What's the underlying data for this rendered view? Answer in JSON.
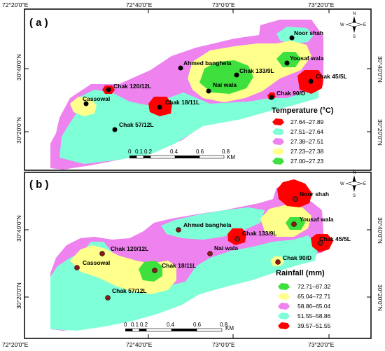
{
  "map": {
    "lon_ticks_top": [
      "72°20'0\"E",
      "72°40'0\"E",
      "73°0'0\"E",
      "73°20'0\"E"
    ],
    "lon_ticks_bottom": [
      "72°20'0\"E",
      "72°40'0\"E",
      "73°0'0\"E",
      "73°20'0\"E"
    ],
    "lat_ticks": [
      "30°40'0\"N",
      "30°20'0\"N"
    ],
    "compass": {
      "n": "N",
      "s": "S",
      "e": "E",
      "w": "W"
    },
    "scale_labels": [
      "0",
      "0.1",
      "0.2",
      "0.4",
      "0.6",
      "0.8"
    ],
    "scale_unit": "KM",
    "colors": {
      "red": "#ff0000",
      "cyan": "#7fffd8",
      "pink": "#ee82ee",
      "yellow": "#ffff8c",
      "green": "#3ee03e",
      "dot_black": "#000000",
      "dot_brown": "#8b1a1a"
    },
    "panels": [
      {
        "id": "a",
        "title": "( a )",
        "legend_title": "Temperature (°C)",
        "legend": [
          {
            "range": "27.64–27.89",
            "color": "#ff0000"
          },
          {
            "range": "27.51–27.64",
            "color": "#7fffd8"
          },
          {
            "range": "27.38–27.51",
            "color": "#ee82ee"
          },
          {
            "range": "27.23–27.38",
            "color": "#ffff8c"
          },
          {
            "range": "27.00–27.23",
            "color": "#3ee03e"
          }
        ],
        "points": [
          {
            "name": "Noor shah"
          },
          {
            "name": "Yousaf wala"
          },
          {
            "name": "Ahmed banghela"
          },
          {
            "name": "Chak 133/9L"
          },
          {
            "name": "Chak 45/5L"
          },
          {
            "name": "Nai wala"
          },
          {
            "name": "Chak 90/D"
          },
          {
            "name": "Chak 120/12L"
          },
          {
            "name": "Chak 18/11L"
          },
          {
            "name": "Cassowal"
          },
          {
            "name": "Chak 57/12L"
          }
        ]
      },
      {
        "id": "b",
        "title": "( b )",
        "legend_title": "Rainfall (mm)",
        "legend": [
          {
            "range": "72.71–87.32",
            "color": "#3ee03e"
          },
          {
            "range": "65.04–72.71",
            "color": "#ffff8c"
          },
          {
            "range": "58.86–65.04",
            "color": "#ee82ee"
          },
          {
            "range": "51.55–58.86",
            "color": "#7fffd8"
          },
          {
            "range": "39.57–51.55",
            "color": "#ff0000"
          }
        ],
        "points": [
          {
            "name": "Noor shah"
          },
          {
            "name": "Yousaf wala"
          },
          {
            "name": "Ahmed banghela"
          },
          {
            "name": "Chak 133/9L"
          },
          {
            "name": "Chak 45/5L"
          },
          {
            "name": "Nai wala"
          },
          {
            "name": "Chak 90/D"
          },
          {
            "name": "Chak 120/12L"
          },
          {
            "name": "Chak 18/11L"
          },
          {
            "name": "Cassowal"
          },
          {
            "name": "Chak 57/12L"
          }
        ]
      }
    ]
  }
}
